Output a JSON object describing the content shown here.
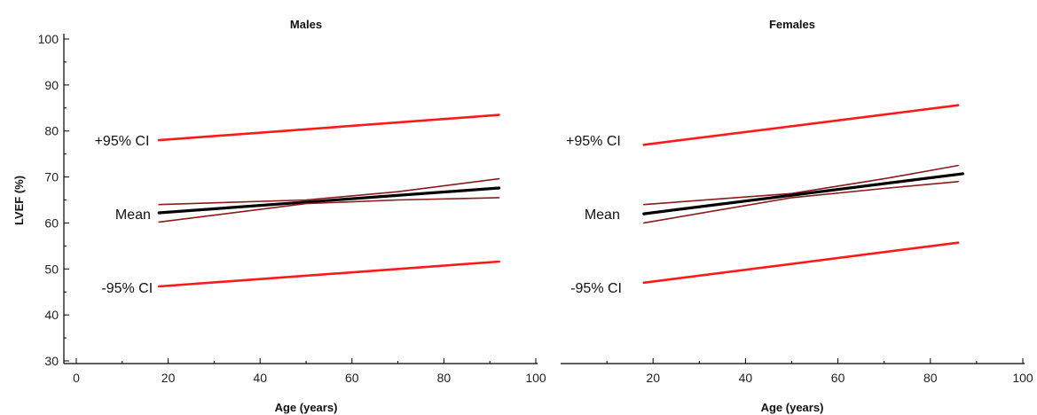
{
  "chart_data": [
    {
      "type": "line",
      "title": "Males",
      "xlabel": "Age (years)",
      "ylabel": "LVEF (%)",
      "xlim": [
        0,
        100
      ],
      "ylim": [
        30,
        100
      ],
      "xticks": [
        "0",
        "20",
        "40",
        "60",
        "80",
        "100"
      ],
      "yticks": [
        "30",
        "40",
        "50",
        "60",
        "70",
        "80",
        "90",
        "100"
      ],
      "grid": false,
      "colors": {
        "ci95": "#ff1a1a",
        "mean": "#000000",
        "mean_ci": "#8b1a1a"
      },
      "series": [
        {
          "role": "ci95_upper",
          "x": [
            18,
            92
          ],
          "y": [
            78.0,
            83.5
          ]
        },
        {
          "role": "mean_ci_upper",
          "x": [
            18,
            50,
            70,
            92
          ],
          "y": [
            64.0,
            65.0,
            66.8,
            69.6
          ]
        },
        {
          "role": "mean",
          "x": [
            18,
            92
          ],
          "y": [
            62.2,
            67.6
          ]
        },
        {
          "role": "mean_ci_lower",
          "x": [
            18,
            50,
            70,
            92
          ],
          "y": [
            60.2,
            64.2,
            65.0,
            65.5
          ]
        },
        {
          "role": "ci95_lower",
          "x": [
            18,
            92
          ],
          "y": [
            46.2,
            51.6
          ]
        }
      ],
      "annotations": [
        {
          "text": "+95% CI",
          "x": 0.5,
          "y": 78
        },
        {
          "text": "Mean",
          "x": 5,
          "y": 62
        },
        {
          "text": "-95% CI",
          "x": 2,
          "y": 46
        }
      ]
    },
    {
      "type": "line",
      "title": "Females",
      "xlabel": "Age (years)",
      "ylabel": "",
      "xlim": [
        0,
        100
      ],
      "ylim": [
        30,
        100
      ],
      "xticks": [
        "20",
        "40",
        "60",
        "80",
        "100"
      ],
      "yticks": [],
      "grid": false,
      "colors": {
        "ci95": "#ff1a1a",
        "mean": "#000000",
        "mean_ci": "#8b1a1a"
      },
      "series": [
        {
          "role": "ci95_upper",
          "x": [
            18,
            86
          ],
          "y": [
            77.0,
            85.6
          ]
        },
        {
          "role": "mean_ci_upper",
          "x": [
            18,
            50,
            70,
            86
          ],
          "y": [
            64.0,
            66.4,
            69.6,
            72.5
          ]
        },
        {
          "role": "mean",
          "x": [
            18,
            87
          ],
          "y": [
            62.0,
            70.7
          ]
        },
        {
          "role": "mean_ci_lower",
          "x": [
            18,
            50,
            70,
            86
          ],
          "y": [
            60.0,
            65.5,
            67.5,
            69.0
          ]
        },
        {
          "role": "ci95_lower",
          "x": [
            18,
            86
          ],
          "y": [
            47.0,
            55.7
          ]
        }
      ],
      "annotations": [
        {
          "text": "+95% CI",
          "x": 0,
          "y": 78
        },
        {
          "text": "Mean",
          "x": 4,
          "y": 62
        },
        {
          "text": "-95% CI",
          "x": 1,
          "y": 46
        }
      ]
    }
  ]
}
